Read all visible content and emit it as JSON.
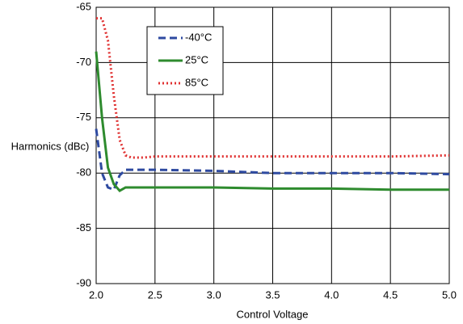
{
  "chart_data": {
    "type": "line",
    "x_label": "Control Voltage",
    "y_label": "Harmonics (dBc)",
    "x": [
      2.0,
      2.05,
      2.1,
      2.15,
      2.2,
      2.25,
      2.3,
      2.4,
      2.5,
      3.0,
      3.5,
      4.0,
      4.5,
      5.0
    ],
    "series": [
      {
        "name": "-40°C",
        "color": "#2e4aa0",
        "dash": "9,5",
        "values": [
          -76,
          -80,
          -81.3,
          -81.5,
          -80.2,
          -79.7,
          -79.7,
          -79.7,
          -79.7,
          -79.8,
          -80,
          -80,
          -80,
          -80.1
        ]
      },
      {
        "name": "25°C",
        "color": "#2e8b2e",
        "dash": "",
        "values": [
          -69,
          -75,
          -79.5,
          -81,
          -81.6,
          -81.3,
          -81.3,
          -81.3,
          -81.3,
          -81.3,
          -81.4,
          -81.4,
          -81.5,
          -81.5
        ]
      },
      {
        "name": "85°C",
        "color": "#e03030",
        "dash": "2,3",
        "values": [
          -66,
          -66,
          -68,
          -73,
          -77,
          -78.4,
          -78.6,
          -78.6,
          -78.5,
          -78.5,
          -78.5,
          -78.5,
          -78.5,
          -78.4
        ]
      }
    ],
    "xlim": [
      2.0,
      5.0
    ],
    "xticks": [
      {
        "value": 2.0,
        "label": "2.0"
      },
      {
        "value": 2.5,
        "label": "2.5"
      },
      {
        "value": 3.0,
        "label": "3.0"
      },
      {
        "value": 3.5,
        "label": "3.5"
      },
      {
        "value": 4.0,
        "label": "4.0"
      },
      {
        "value": 4.5,
        "label": "4.5"
      },
      {
        "value": 5.0,
        "label": "5.0"
      }
    ],
    "ylim": [
      -90,
      -65
    ],
    "yticks": [
      -65,
      -70,
      -75,
      -80,
      -85,
      -90
    ],
    "grid": true,
    "legend": "top-left"
  }
}
